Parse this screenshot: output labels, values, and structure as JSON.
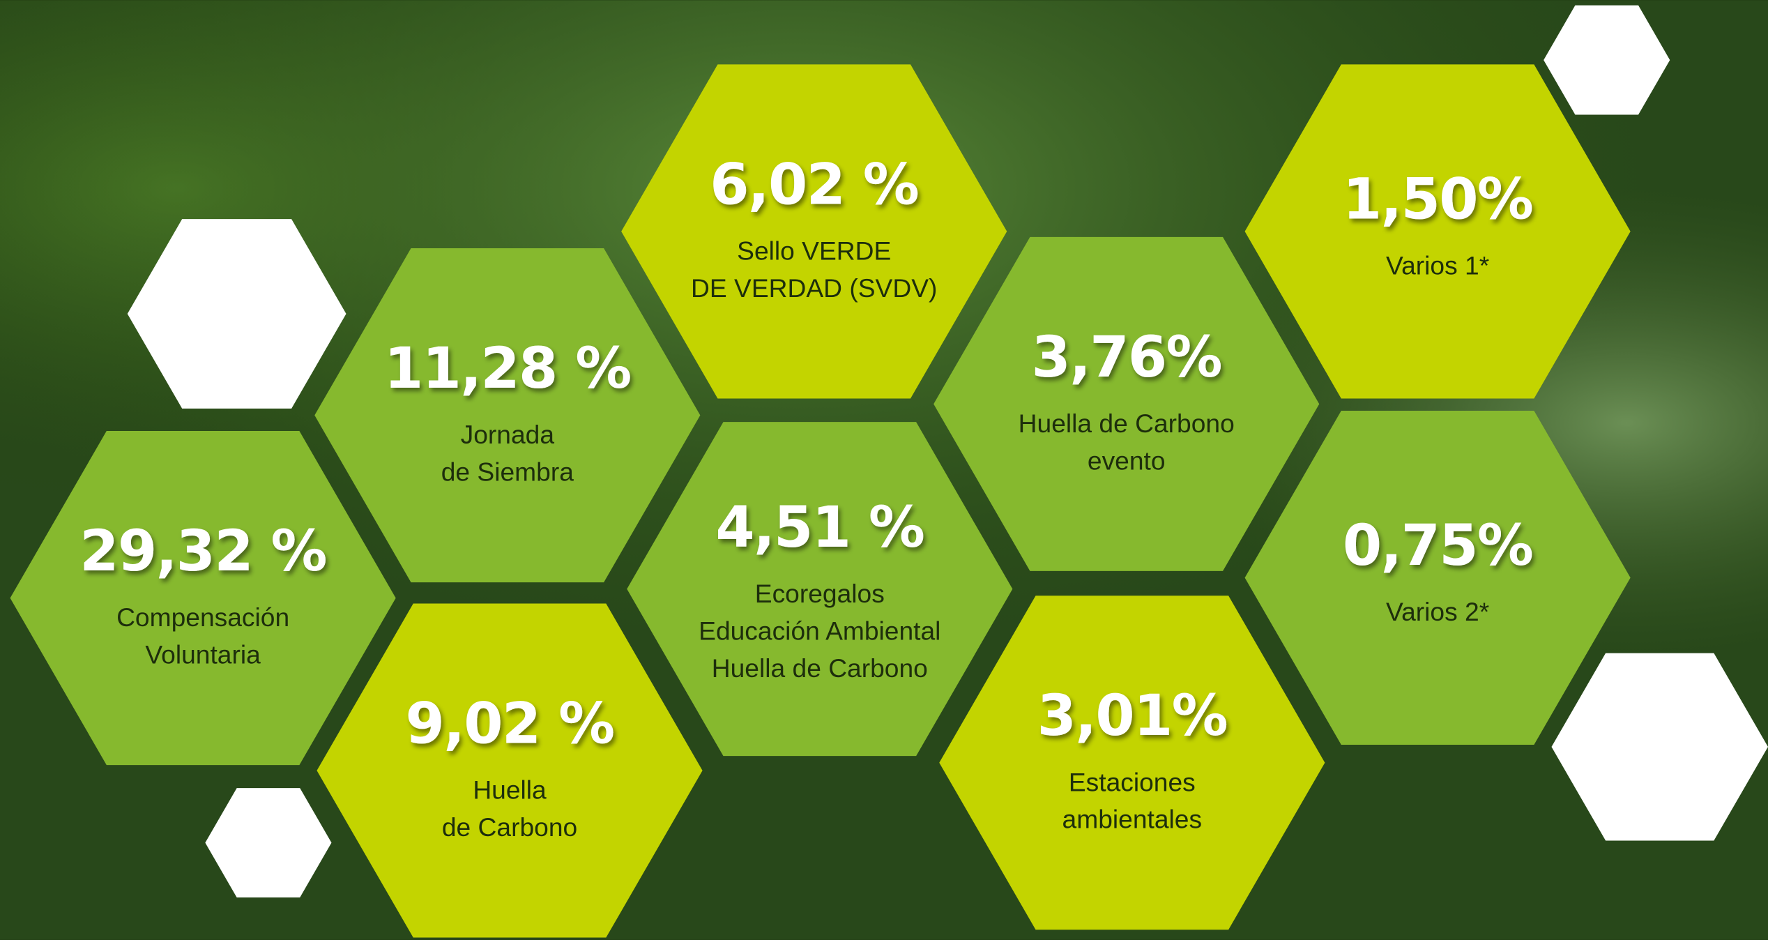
{
  "items": [
    {
      "value": "29,32 %",
      "label": [
        "Compensación",
        "Voluntaria"
      ]
    },
    {
      "value": "11,28 %",
      "label": [
        "Jornada",
        "de Siembra"
      ]
    },
    {
      "value": "9,02 %",
      "label": [
        "Huella",
        "de Carbono"
      ]
    },
    {
      "value": "6,02 %",
      "label": [
        "Sello VERDE",
        "DE VERDAD (SVDV)"
      ]
    },
    {
      "value": "4,51 %",
      "label": [
        "Ecoregalos",
        "Educación Ambiental",
        "Huella de Carbono"
      ]
    },
    {
      "value": "3,76%",
      "label": [
        "Huella de Carbono",
        "evento"
      ]
    },
    {
      "value": "3,01%",
      "label": [
        "Estaciones",
        "ambientales"
      ]
    },
    {
      "value": "1,50%",
      "label": [
        "Varios 1*"
      ]
    },
    {
      "value": "0,75%",
      "label": [
        "Varios 2*"
      ]
    }
  ]
}
